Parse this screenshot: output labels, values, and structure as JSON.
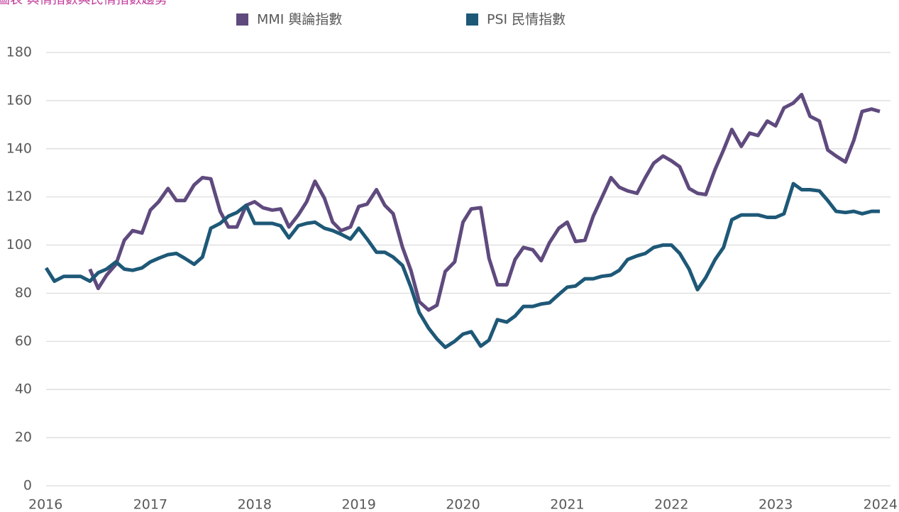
{
  "chart_data": {
    "type": "line",
    "title": "圖表 輿情指數與民情指數趨勢",
    "x": [
      2016,
      2016.08,
      2016.17,
      2016.25,
      2016.33,
      2016.42,
      2016.5,
      2016.58,
      2016.67,
      2016.75,
      2016.83,
      2016.92,
      2017,
      2017.08,
      2017.17,
      2017.25,
      2017.33,
      2017.42,
      2017.5,
      2017.58,
      2017.67,
      2017.75,
      2017.83,
      2017.92,
      2018,
      2018.08,
      2018.17,
      2018.25,
      2018.33,
      2018.42,
      2018.5,
      2018.58,
      2018.67,
      2018.75,
      2018.83,
      2018.92,
      2019,
      2019.08,
      2019.17,
      2019.25,
      2019.33,
      2019.42,
      2019.5,
      2019.58,
      2019.67,
      2019.75,
      2019.83,
      2019.92,
      2020,
      2020.08,
      2020.17,
      2020.25,
      2020.33,
      2020.42,
      2020.5,
      2020.58,
      2020.67,
      2020.75,
      2020.83,
      2020.92,
      2021,
      2021.08,
      2021.17,
      2021.25,
      2021.33,
      2021.42,
      2021.5,
      2021.58,
      2021.67,
      2021.75,
      2021.83,
      2021.92,
      2022,
      2022.08,
      2022.17,
      2022.25,
      2022.33,
      2022.42,
      2022.5,
      2022.58,
      2022.67,
      2022.75,
      2022.83,
      2022.92,
      2023,
      2023.08,
      2023.17,
      2023.25,
      2023.33,
      2023.42,
      2023.5,
      2023.58,
      2023.67,
      2023.75,
      2023.83,
      2023.92,
      2024
    ],
    "series": [
      {
        "name": "MMI 輿論指數",
        "color": "#5f4a7e",
        "values": [
          null,
          null,
          null,
          null,
          null,
          90,
          82,
          87.5,
          92,
          102,
          106,
          105,
          114.5,
          118,
          123.5,
          118.5,
          118.5,
          125,
          128,
          127.5,
          114,
          107.5,
          107.5,
          116.5,
          118,
          115.5,
          114.5,
          115,
          107.5,
          112.5,
          118,
          126.5,
          119.5,
          109.5,
          106,
          107.5,
          116,
          117,
          123,
          116.5,
          113,
          99,
          89.5,
          76.5,
          73,
          75,
          89,
          93,
          109.5,
          115,
          115.5,
          94.5,
          83.5,
          83.5,
          94,
          99,
          98,
          93.5,
          101,
          107,
          109.5,
          101.5,
          102,
          112,
          119.5,
          128,
          124,
          122.5,
          121.5,
          128,
          134,
          137,
          135,
          132.5,
          123.5,
          121.5,
          121,
          131.5,
          139.5,
          148,
          141,
          146.5,
          145.5,
          151.5,
          149.5,
          157,
          159,
          162.5,
          153.5,
          151.5,
          139.5,
          137,
          134.5,
          143.5,
          155.5,
          156.5,
          155.5
        ]
      },
      {
        "name": "PSI 民情指數",
        "color": "#1e5877",
        "values": [
          90.5,
          85,
          87,
          87,
          87,
          85,
          88.5,
          90,
          93,
          90,
          89.5,
          90.5,
          93,
          94.5,
          96,
          96.5,
          94.5,
          92,
          95,
          107,
          109,
          112,
          113.5,
          116.5,
          109,
          109,
          109,
          108,
          103,
          108,
          109,
          109.5,
          107,
          106,
          104.5,
          102.5,
          107,
          102.5,
          97,
          97,
          95,
          91.5,
          82.5,
          72,
          65.5,
          61,
          57.5,
          60,
          63,
          64,
          58,
          60.5,
          69,
          68,
          70.5,
          74.5,
          74.5,
          75.5,
          76,
          79.5,
          82.5,
          83,
          86,
          86,
          87,
          87.5,
          89.5,
          94,
          95.5,
          96.5,
          99,
          100,
          100,
          96.5,
          90,
          81.5,
          86.5,
          94,
          99,
          110.5,
          112.5,
          112.5,
          112.5,
          111.5,
          111.5,
          113,
          125.5,
          123,
          123,
          122.5,
          118.5,
          114,
          113.5,
          114,
          113,
          114,
          114
        ]
      }
    ],
    "xlim": [
      2016,
      2024
    ],
    "xticks": [
      2016,
      2017,
      2018,
      2019,
      2020,
      2021,
      2022,
      2023,
      2024
    ],
    "ylim": [
      0,
      180
    ],
    "yticks": [
      0,
      20,
      40,
      60,
      80,
      100,
      120,
      140,
      160,
      180
    ],
    "grid": true,
    "legend": "top"
  }
}
